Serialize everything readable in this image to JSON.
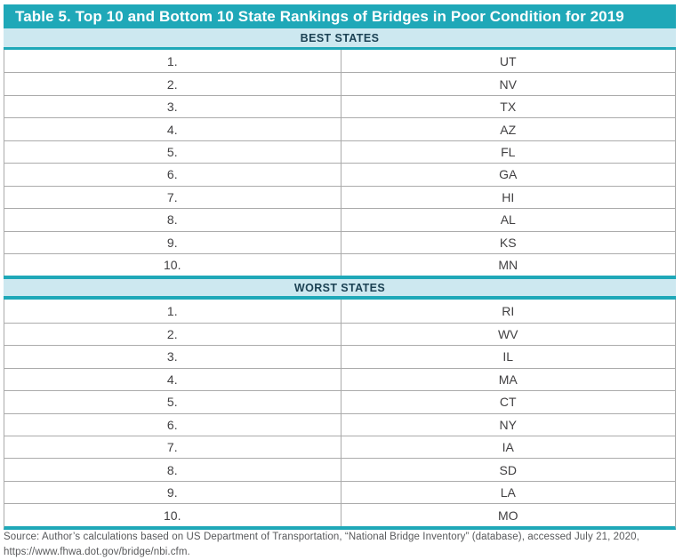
{
  "table": {
    "title": "Table 5. Top 10 and Bottom 10 State Rankings of Bridges in Poor Condition for 2019",
    "sections": [
      {
        "header": "BEST STATES",
        "rows": [
          {
            "rank": "1.",
            "state": "UT"
          },
          {
            "rank": "2.",
            "state": "NV"
          },
          {
            "rank": "3.",
            "state": "TX"
          },
          {
            "rank": "4.",
            "state": "AZ"
          },
          {
            "rank": "5.",
            "state": "FL"
          },
          {
            "rank": "6.",
            "state": "GA"
          },
          {
            "rank": "7.",
            "state": "HI"
          },
          {
            "rank": "8.",
            "state": "AL"
          },
          {
            "rank": "9.",
            "state": "KS"
          },
          {
            "rank": "10.",
            "state": "MN"
          }
        ]
      },
      {
        "header": "WORST STATES",
        "rows": [
          {
            "rank": "1.",
            "state": "RI"
          },
          {
            "rank": "2.",
            "state": "WV"
          },
          {
            "rank": "3.",
            "state": "IL"
          },
          {
            "rank": "4.",
            "state": "MA"
          },
          {
            "rank": "5.",
            "state": "CT"
          },
          {
            "rank": "6.",
            "state": "NY"
          },
          {
            "rank": "7.",
            "state": "IA"
          },
          {
            "rank": "8.",
            "state": "SD"
          },
          {
            "rank": "9.",
            "state": "LA"
          },
          {
            "rank": "10.",
            "state": "MO"
          }
        ]
      }
    ]
  },
  "source": {
    "line1": "Source: Author’s calculations based on US Department of Transportation, “National Bridge Inventory” (database), accessed July 21, 2020,",
    "line2": "https://www.fhwa.dot.gov/bridge/nbi.cfm."
  },
  "colors": {
    "accent_teal": "#1fa8b8",
    "band_light_blue": "#cde8f0",
    "band_text": "#1c4254",
    "row_border_gray": "#ababab",
    "cell_text": "#414042",
    "source_text": "#58595b"
  }
}
